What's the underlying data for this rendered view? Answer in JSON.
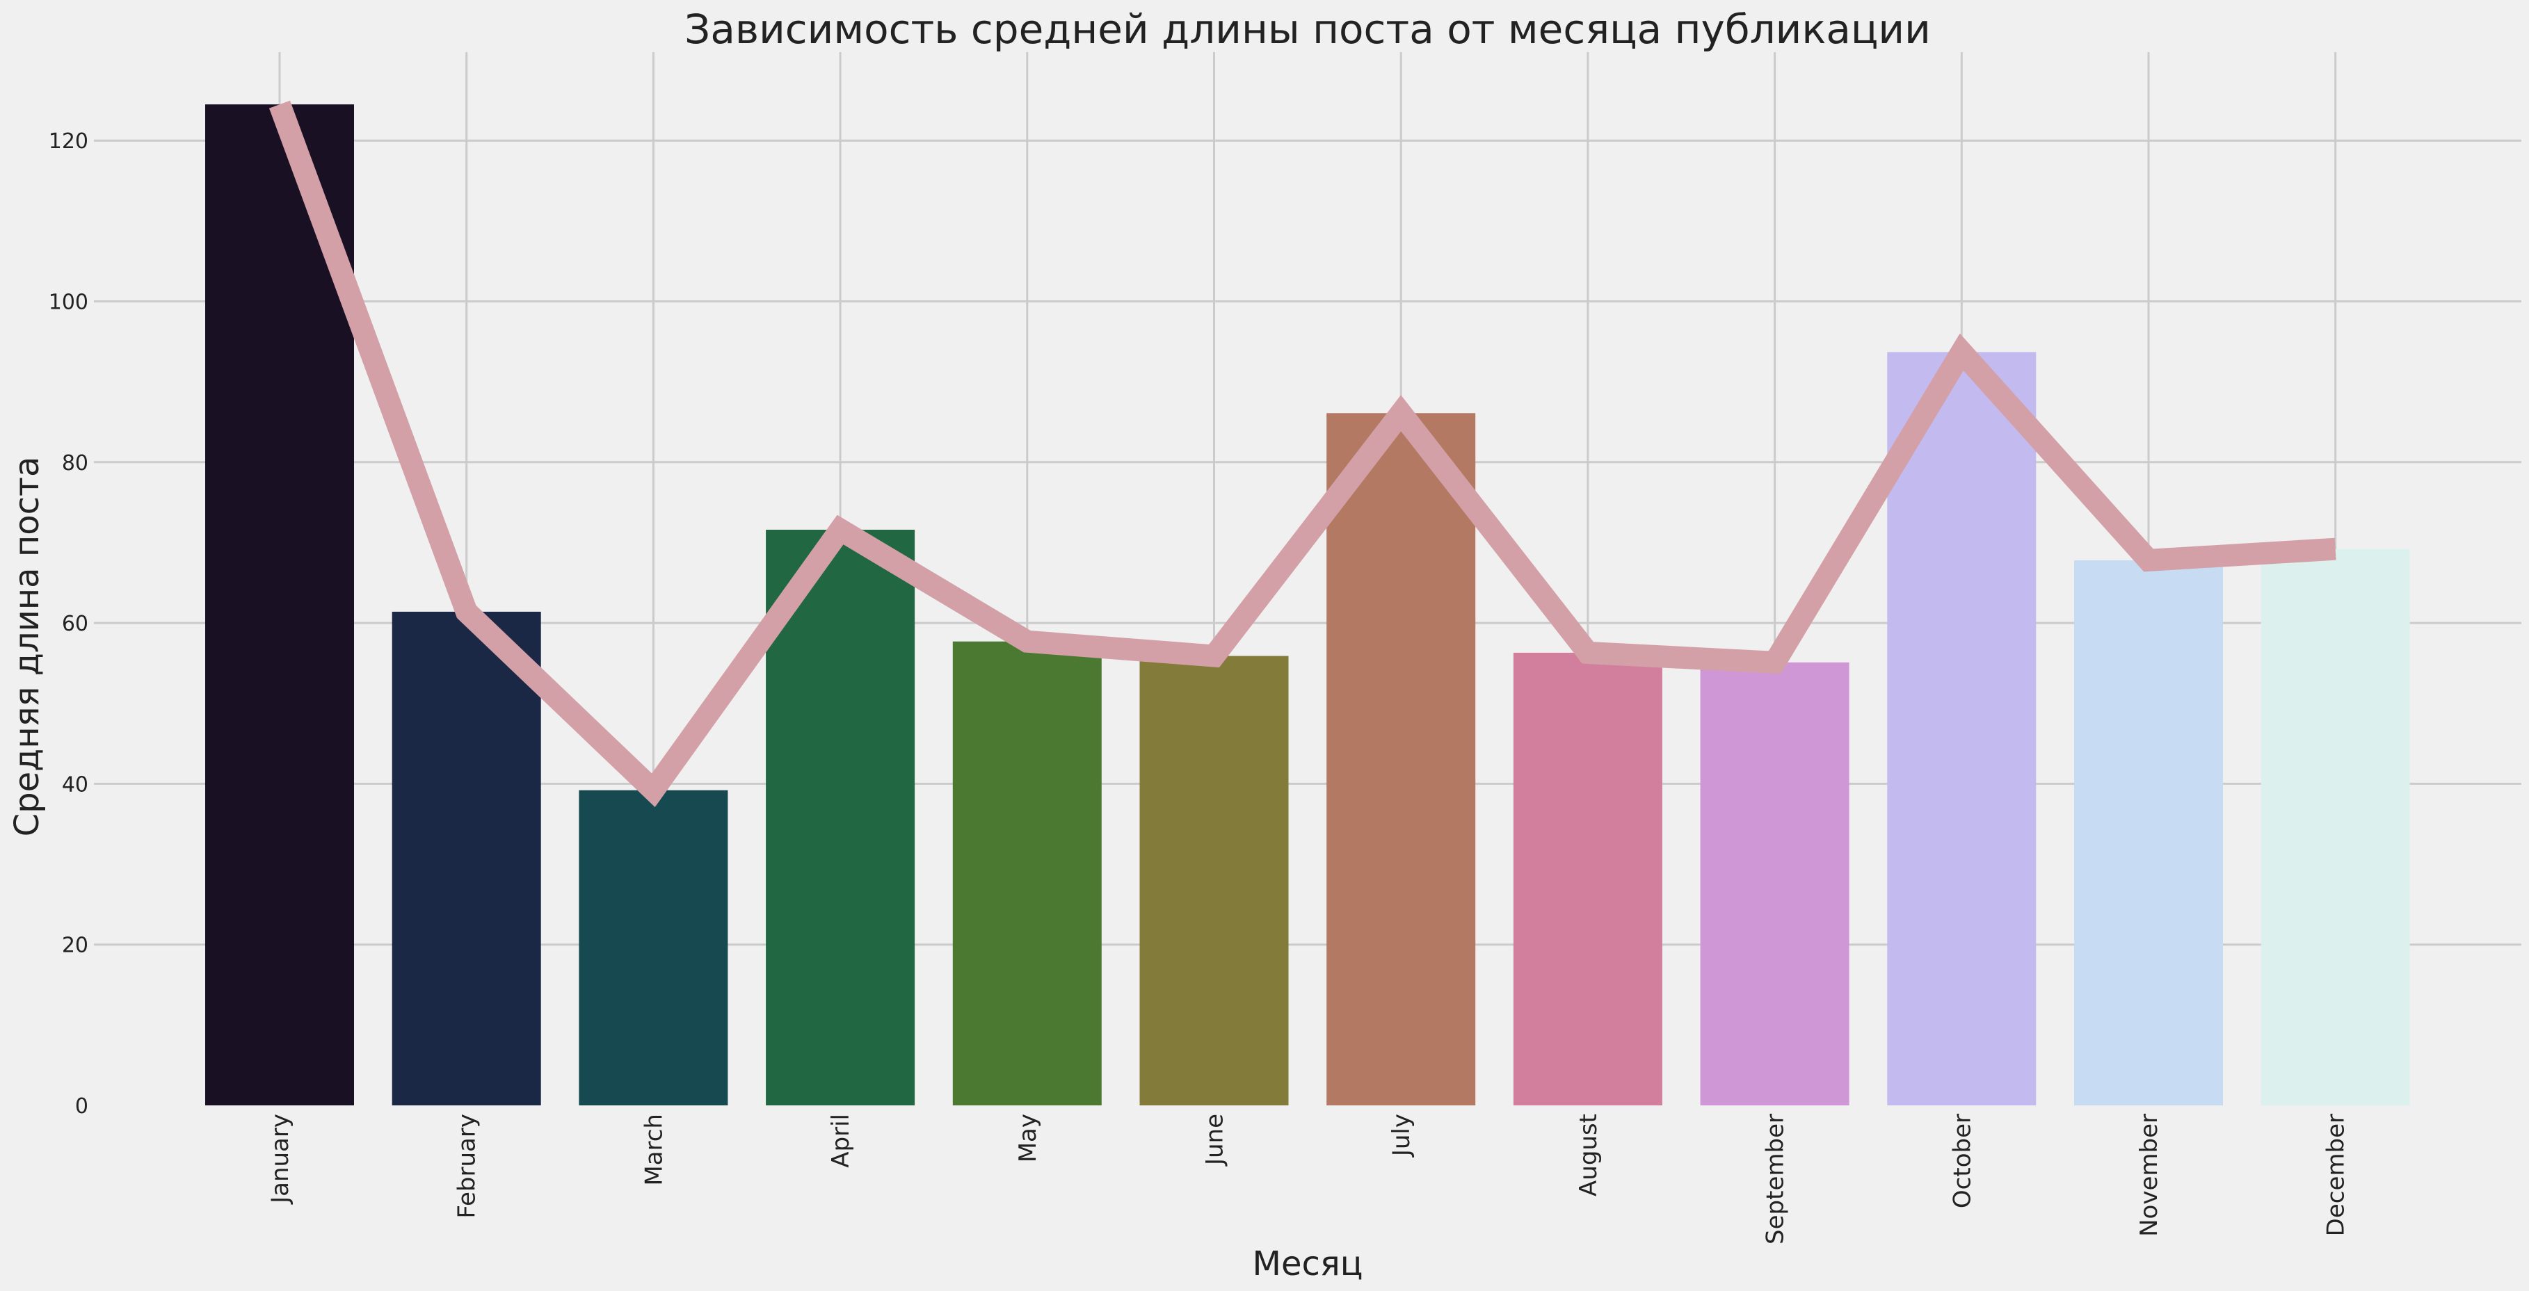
{
  "chart_data": {
    "type": "bar",
    "title": "Зависимость средней длины поста от месяца публикации",
    "xlabel": "Месяц",
    "ylabel": "Средняя длина поста",
    "categories": [
      "January",
      "February",
      "March",
      "April",
      "May",
      "June",
      "July",
      "August",
      "September",
      "October",
      "November",
      "December"
    ],
    "values": [
      124.5,
      61.4,
      39.2,
      71.6,
      57.7,
      55.9,
      86.1,
      56.3,
      55.1,
      93.7,
      67.8,
      69.2
    ],
    "bar_colors": [
      "#1a1024",
      "#1b2845",
      "#164a50",
      "#216742",
      "#4b7932",
      "#837b3a",
      "#b47962",
      "#d27f9e",
      "#cf97d5",
      "#c3baf0",
      "#c7dcf2",
      "#dcf1ee"
    ],
    "series": [
      {
        "type": "bar",
        "values": [
          124.5,
          61.4,
          39.2,
          71.6,
          57.7,
          55.9,
          86.1,
          56.3,
          55.1,
          93.7,
          67.8,
          69.2
        ]
      },
      {
        "type": "line",
        "values": [
          124.5,
          61.4,
          39.2,
          71.6,
          57.7,
          55.9,
          86.1,
          56.3,
          55.1,
          93.7,
          67.8,
          69.2
        ],
        "color": "#d4a0a7"
      }
    ],
    "ylim": [
      0,
      131
    ],
    "yticks": [
      0,
      20,
      40,
      60,
      80,
      100,
      120
    ],
    "grid": true,
    "background": "#f0f0f0"
  }
}
